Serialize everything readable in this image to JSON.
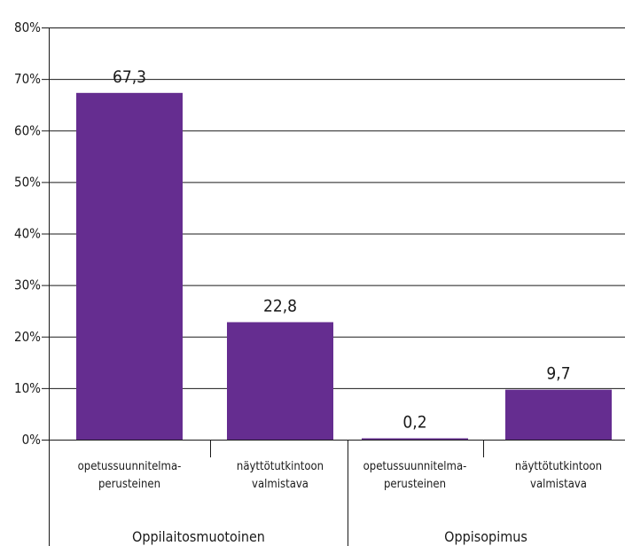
{
  "chart_data": {
    "type": "bar",
    "title": "",
    "xlabel": "",
    "ylabel": "",
    "ylim": [
      0,
      80
    ],
    "yticks": [
      0,
      10,
      20,
      30,
      40,
      50,
      60,
      70,
      80
    ],
    "ytick_labels": [
      "0%",
      "10%",
      "20%",
      "30%",
      "40%",
      "50%",
      "60%",
      "70%",
      "80%"
    ],
    "grid": true,
    "bar_color": "#652D90",
    "groups": [
      {
        "label": "Oppilaitosmuotoinen",
        "categories": [
          {
            "lines": [
              "opetussuunnitelma-",
              "perusteinen"
            ]
          },
          {
            "lines": [
              "näyttötutkintoon",
              "valmistava"
            ]
          }
        ]
      },
      {
        "label": "Oppisopimus",
        "categories": [
          {
            "lines": [
              "opetussuunnitelma-",
              "perusteinen"
            ]
          },
          {
            "lines": [
              "näyttötutkintoon",
              "valmistava"
            ]
          }
        ]
      }
    ],
    "values": [
      67.3,
      22.8,
      0.2,
      9.7
    ],
    "value_labels": [
      "67,3",
      "22,8",
      "0,2",
      "9,7"
    ]
  }
}
